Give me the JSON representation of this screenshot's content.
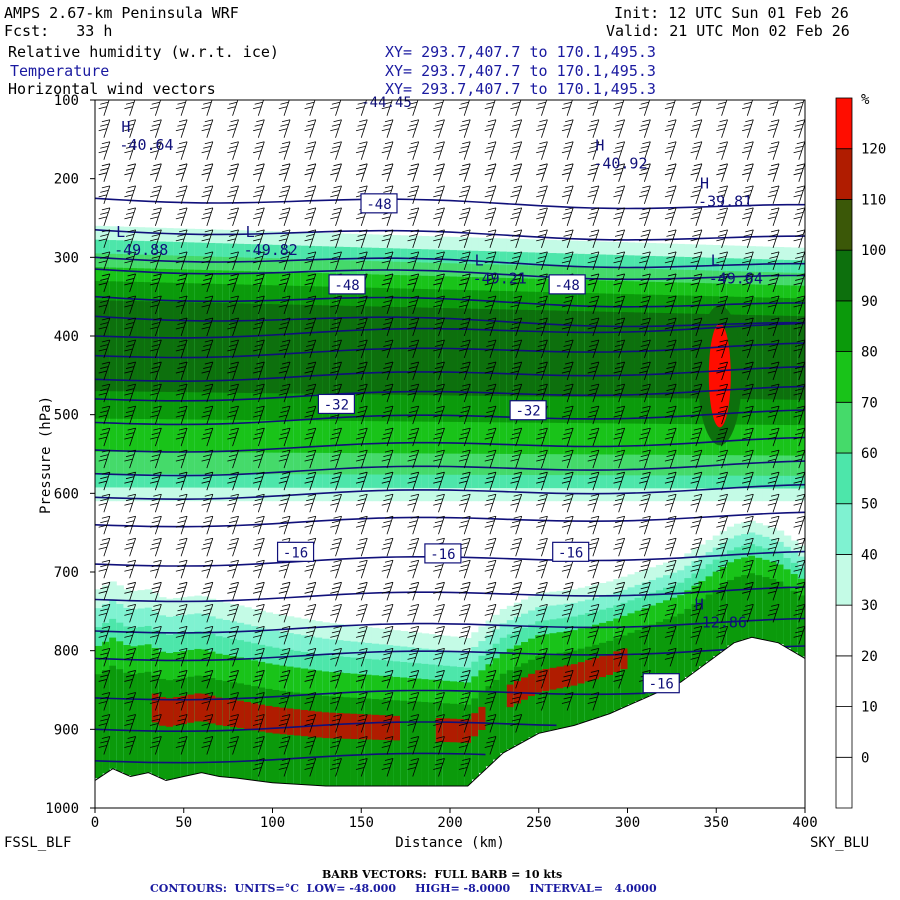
{
  "header": {
    "title": "AMPS 2.67-km Peninsula WRF",
    "forecast": "Fcst:   33 h",
    "init": "Init: 12 UTC Sun 01 Feb 26",
    "valid": "Valid: 21 UTC Mon 02 Feb 26",
    "field1": "Relative humidity (w.r.t. ice)",
    "field2": "Temperature",
    "field3": "Horizontal wind vectors",
    "xs1": "XY= 293.7,407.7 to 170.1,495.3",
    "xs2": "XY= 293.7,407.7 to 170.1,495.3",
    "xs3": "XY= 293.7,407.7 to 170.1,495.3"
  },
  "endpoints": {
    "left": "FSSL_BLF",
    "right": "SKY_BLU"
  },
  "footer": {
    "barbs": "BARB VECTORS:  FULL BARB = 10 kts",
    "contours": "CONTOURS:  UNITS=°C  LOW= -48.000     HIGH= -8.0000     INTERVAL=   4.0000"
  },
  "colors": {
    "contour": "#10107a",
    "rh_scale": [
      "#ffffff",
      "#ffffff",
      "#ffffff",
      "#ffffff",
      "#c4fbe6",
      "#7ff2d1",
      "#4de6aa",
      "#45da6a",
      "#19c319",
      "#0b9a0b",
      "#0d700d",
      "#3b5808",
      "#b01c00",
      "#ff0d00"
    ]
  },
  "chart_data": {
    "type": "cross-section",
    "xlabel": "Distance (km)",
    "ylabel": "Pressure (hPa)",
    "xlim": [
      0,
      400
    ],
    "ylim": [
      1000,
      100
    ],
    "xticks": [
      0,
      50,
      100,
      150,
      200,
      250,
      300,
      350,
      400
    ],
    "yticks": [
      100,
      200,
      300,
      400,
      500,
      600,
      700,
      800,
      900,
      1000
    ],
    "colorbar": {
      "unit": "%",
      "bounds": [
        -10,
        0,
        10,
        20,
        30,
        40,
        50,
        60,
        70,
        80,
        90,
        100,
        110,
        120,
        130
      ],
      "labels": [
        120,
        110,
        100,
        90,
        80,
        70,
        60,
        50,
        40,
        30,
        20,
        10,
        0
      ]
    },
    "terrain_surface_hpa": [
      [
        0,
        965
      ],
      [
        10,
        950
      ],
      [
        20,
        960
      ],
      [
        30,
        955
      ],
      [
        40,
        965
      ],
      [
        50,
        960
      ],
      [
        60,
        955
      ],
      [
        70,
        960
      ],
      [
        80,
        962
      ],
      [
        100,
        968
      ],
      [
        130,
        972
      ],
      [
        160,
        972
      ],
      [
        190,
        972
      ],
      [
        210,
        972
      ],
      [
        230,
        930
      ],
      [
        250,
        905
      ],
      [
        270,
        895
      ],
      [
        290,
        880
      ],
      [
        310,
        860
      ],
      [
        330,
        840
      ],
      [
        345,
        815
      ],
      [
        360,
        790
      ],
      [
        370,
        783
      ],
      [
        385,
        790
      ],
      [
        400,
        810
      ]
    ],
    "rh_layers": [
      {
        "p_top": 290,
        "p_bottom": 600,
        "rh_max": 110
      },
      {
        "p_top": 750,
        "p_bottom": 975,
        "rh_max": 120
      },
      {
        "center_km": 352,
        "p_top": 370,
        "p_bottom": 530,
        "rh_max": 130
      }
    ],
    "temperature_labels": [
      {
        "x_km": 160,
        "p_hpa": 232,
        "text": "-48"
      },
      {
        "x_km": 142,
        "p_hpa": 335,
        "text": "-48"
      },
      {
        "x_km": 266,
        "p_hpa": 335,
        "text": "-48"
      },
      {
        "x_km": 136,
        "p_hpa": 487,
        "text": "-32"
      },
      {
        "x_km": 244,
        "p_hpa": 495,
        "text": "-32"
      },
      {
        "x_km": 113,
        "p_hpa": 675,
        "text": "-16"
      },
      {
        "x_km": 196,
        "p_hpa": 677,
        "text": "-16"
      },
      {
        "x_km": 268,
        "p_hpa": 675,
        "text": "-16"
      },
      {
        "x_km": 319,
        "p_hpa": 842,
        "text": "-16"
      }
    ],
    "extrema": [
      {
        "kind": "H",
        "x_km": 16,
        "p_hpa": 148,
        "value": "-40.64"
      },
      {
        "kind": "H",
        "x_km": 283,
        "p_hpa": 172,
        "value": "-40.92"
      },
      {
        "kind": "H",
        "x_km": 342,
        "p_hpa": 220,
        "value": "-39.81"
      },
      {
        "kind": "L",
        "x_km": 13,
        "p_hpa": 282,
        "value": "-49.88"
      },
      {
        "kind": "L",
        "x_km": 86,
        "p_hpa": 282,
        "value": "-49.82"
      },
      {
        "kind": "L",
        "x_km": 215,
        "p_hpa": 318,
        "value": "-49.21"
      },
      {
        "kind": "L",
        "x_km": 348,
        "p_hpa": 318,
        "value": "-49.64"
      },
      {
        "kind": "H",
        "x_km": 339,
        "p_hpa": 755,
        "value": "-12.86"
      }
    ],
    "top_label": "-44.45"
  }
}
